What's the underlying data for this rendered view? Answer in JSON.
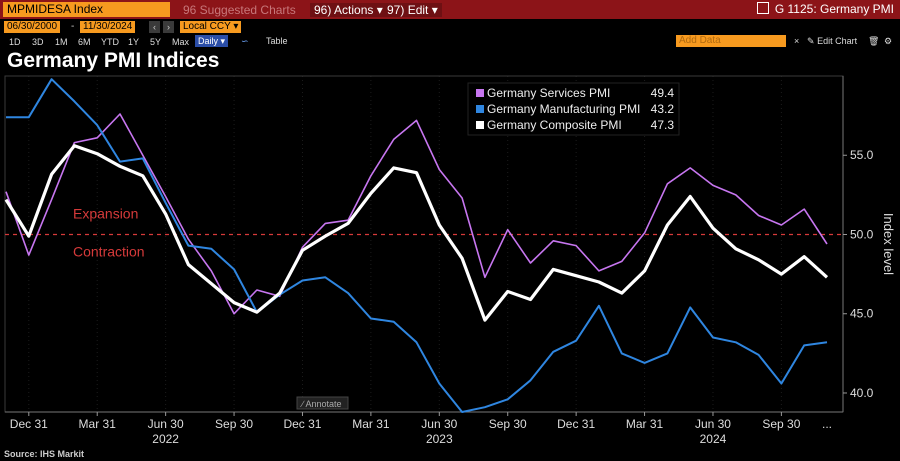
{
  "toolbar": {
    "ticker": "MPMIDESA Index",
    "suggested_charts": "96 Suggested Charts",
    "actions_num": "96)",
    "actions": "Actions",
    "edit_num": "97)",
    "edit": "Edit",
    "window_title": "G 1125: Germany PMI",
    "start_date": "06/30/2000",
    "end_date": "11/30/2024",
    "currency": "Local CCY",
    "periods": [
      "1D",
      "3D",
      "1M",
      "6M",
      "YTD",
      "1Y",
      "5Y",
      "Max"
    ],
    "frequency": "Daily",
    "table": "Table",
    "add_data": "Add Data",
    "edit_chart": "Edit Chart"
  },
  "colors": {
    "services": "#c776f0",
    "manufacturing": "#2f86e0",
    "composite": "#ffffff",
    "threshold": "#d63a3a",
    "toolbar_red": "#8c1418",
    "field_orange": "#f79a1f"
  },
  "chart_data": {
    "type": "line",
    "title": "Germany PMI Indices",
    "ylabel": "Index level",
    "source": "Source: IHS Markit",
    "ylim": [
      38.8,
      60
    ],
    "yticks": [
      40.0,
      45.0,
      50.0,
      55.0
    ],
    "ytick_labels": [
      "40.0",
      "45.0",
      "50.0",
      "55.0"
    ],
    "xtick_labels": [
      "Dec 31",
      "Mar 31",
      "Jun 30",
      "Sep 30",
      "Dec 31",
      "Mar 31",
      "Jun 30",
      "Sep 30",
      "Dec 31",
      "Mar 31",
      "Jun 30",
      "Sep 30",
      "..."
    ],
    "year_labels": [
      "2022",
      "2023",
      "2024"
    ],
    "x": [
      "Nov 2021",
      "Dec 2021",
      "Jan 2022",
      "Feb 2022",
      "Mar 2022",
      "Apr 2022",
      "May 2022",
      "Jun 2022",
      "Jul 2022",
      "Aug 2022",
      "Sep 2022",
      "Oct 2022",
      "Nov 2022",
      "Dec 2022",
      "Jan 2023",
      "Feb 2023",
      "Mar 2023",
      "Apr 2023",
      "May 2023",
      "Jun 2023",
      "Jul 2023",
      "Aug 2023",
      "Sep 2023",
      "Oct 2023",
      "Nov 2023",
      "Dec 2023",
      "Jan 2024",
      "Feb 2024",
      "Mar 2024",
      "Apr 2024",
      "May 2024",
      "Jun 2024",
      "Jul 2024",
      "Aug 2024",
      "Sep 2024",
      "Oct 2024",
      "Nov 2024"
    ],
    "threshold": 50,
    "annotations": [
      "Expansion",
      "Contraction"
    ],
    "annotate_label": "Annotate",
    "series": [
      {
        "name": "Germany Services PMI",
        "last": "49.4",
        "values": [
          52.7,
          48.7,
          52.2,
          55.8,
          56.1,
          57.6,
          55.0,
          52.4,
          49.7,
          47.7,
          45.0,
          46.5,
          46.1,
          49.2,
          50.7,
          50.9,
          53.7,
          56.0,
          57.2,
          54.1,
          52.3,
          47.3,
          50.3,
          48.2,
          49.6,
          49.3,
          47.7,
          48.3,
          50.1,
          53.2,
          54.2,
          53.1,
          52.5,
          51.2,
          50.6,
          51.6,
          49.4
        ]
      },
      {
        "name": "Germany Manufacturing PMI",
        "last": "43.2",
        "values": [
          57.4,
          57.4,
          59.8,
          58.4,
          56.9,
          54.6,
          54.8,
          52.0,
          49.3,
          49.1,
          47.8,
          45.1,
          46.2,
          47.1,
          47.3,
          46.3,
          44.7,
          44.5,
          43.2,
          40.6,
          38.8,
          39.1,
          39.6,
          40.8,
          42.6,
          43.3,
          45.5,
          42.5,
          41.9,
          42.5,
          45.4,
          43.5,
          43.2,
          42.4,
          40.6,
          43.0,
          43.2
        ]
      },
      {
        "name": "Germany Composite PMI",
        "last": "47.3",
        "values": [
          52.2,
          49.9,
          53.8,
          55.6,
          55.1,
          54.3,
          53.7,
          51.3,
          48.1,
          46.9,
          45.7,
          45.1,
          46.3,
          49.0,
          49.9,
          50.7,
          52.6,
          54.2,
          53.9,
          50.6,
          48.5,
          44.6,
          46.4,
          45.9,
          47.8,
          47.4,
          47.0,
          46.3,
          47.7,
          50.6,
          52.4,
          50.4,
          49.1,
          48.4,
          47.5,
          48.6,
          47.3
        ]
      }
    ]
  }
}
